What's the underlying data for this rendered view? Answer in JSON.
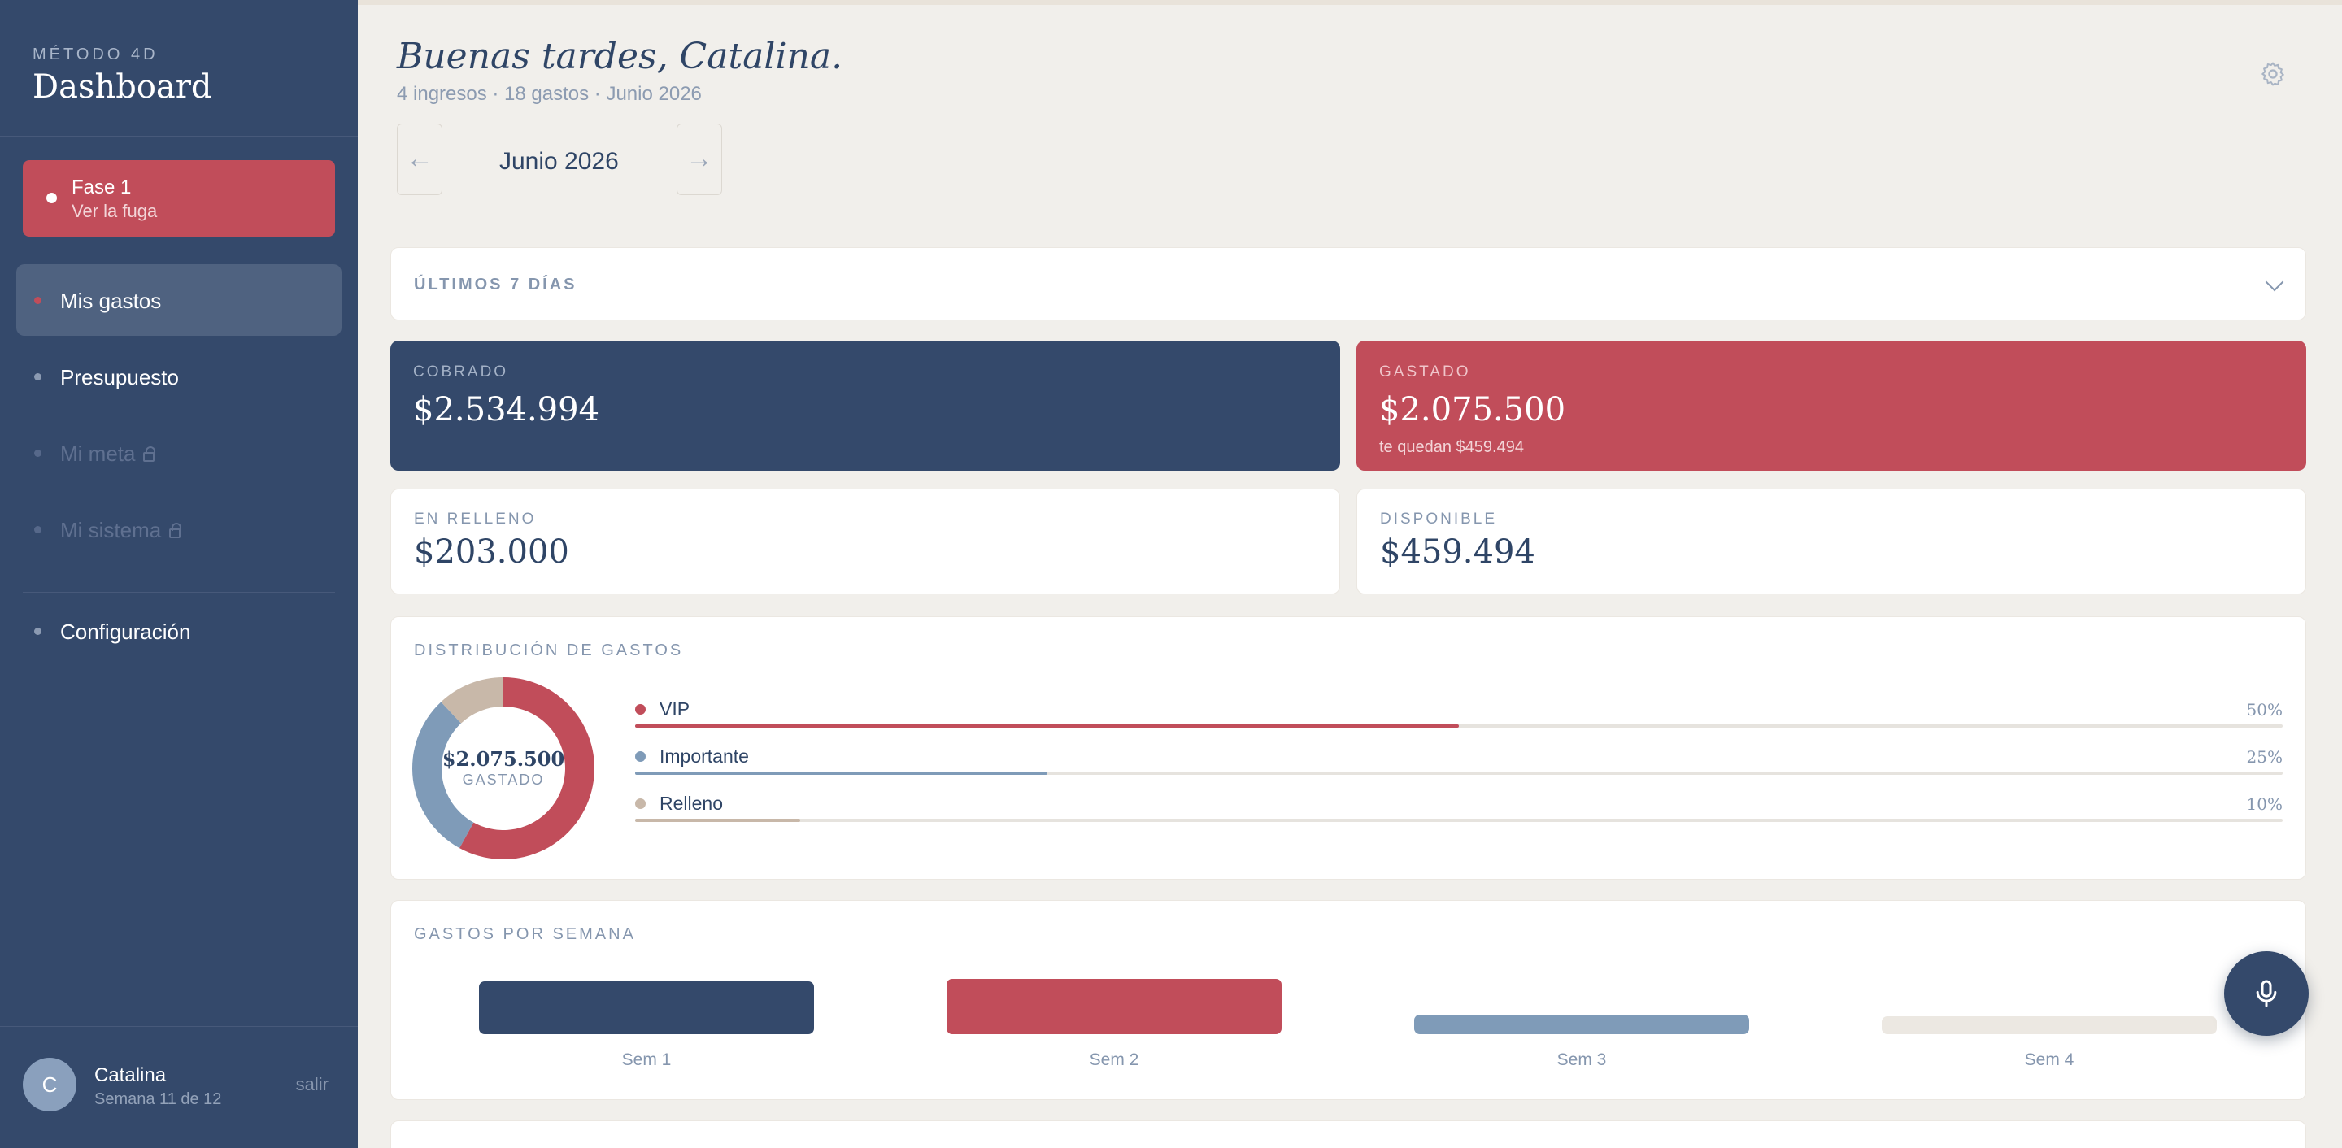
{
  "sidebar": {
    "kicker": "MÉTODO 4D",
    "title": "Dashboard",
    "phase": {
      "title": "Fase 1",
      "subtitle": "Ver la fuga"
    },
    "items": [
      {
        "label": "Mis gastos",
        "active": true,
        "locked": false
      },
      {
        "label": "Presupuesto",
        "active": false,
        "locked": false
      },
      {
        "label": "Mi meta",
        "active": false,
        "locked": true
      },
      {
        "label": "Mi sistema",
        "active": false,
        "locked": true
      },
      {
        "label": "Configuración",
        "active": false,
        "locked": false
      }
    ],
    "user": {
      "initial": "C",
      "name": "Catalina",
      "week": "Semana 11 de 12",
      "logout": "salir"
    }
  },
  "header": {
    "greeting": "Buenas tardes, Catalina.",
    "summary": "4 ingresos · 18 gastos · Junio 2026",
    "month": "Junio 2026",
    "prev": "←",
    "next": "→"
  },
  "period": {
    "label": "ÚLTIMOS 7 DÍAS"
  },
  "stats": {
    "cobrado": {
      "label": "COBRADO",
      "value": "$2.534.994"
    },
    "gastado": {
      "label": "GASTADO",
      "value": "$2.075.500",
      "sub": "te quedan $459.494"
    },
    "relleno": {
      "label": "EN RELLENO",
      "value": "$203.000"
    },
    "disponible": {
      "label": "DISPONIBLE",
      "value": "$459.494"
    }
  },
  "distribution": {
    "title": "DISTRIBUCIÓN DE GASTOS",
    "center_value": "$2.075.500",
    "center_label": "GASTADO",
    "rows": [
      {
        "name": "VIP",
        "pct_label": "50%",
        "fill": 0.5,
        "color": "#c14d5a"
      },
      {
        "name": "Importante",
        "pct_label": "25%",
        "fill": 0.25,
        "color": "#7f9bb8"
      },
      {
        "name": "Relleno",
        "pct_label": "10%",
        "fill": 0.1,
        "color": "#c8b8a9"
      }
    ],
    "donut": [
      {
        "share": 0.58,
        "color": "#c14d5a"
      },
      {
        "share": 0.3,
        "color": "#7f9bb8"
      },
      {
        "share": 0.12,
        "color": "#c8b8a9"
      }
    ]
  },
  "weekly": {
    "title": "GASTOS POR SEMANA",
    "weeks": [
      {
        "label": "Sem 1",
        "level": 0.95,
        "color": "#34496b"
      },
      {
        "label": "Sem 2",
        "level": 1.0,
        "color": "#c14d5a"
      },
      {
        "label": "Sem 3",
        "level": 0.35,
        "color": "#7f9bb8"
      },
      {
        "label": "Sem 4",
        "level": 0.3,
        "color": "#ece8e2"
      }
    ]
  },
  "icons": {
    "settings": "gear-icon",
    "mic": "microphone-icon",
    "expand": "chevron-down-icon",
    "lock": "lock-icon"
  },
  "colors": {
    "navy": "#34496b",
    "red": "#c14d5a",
    "blue": "#7f9bb8",
    "beige": "#c8b8a9"
  }
}
